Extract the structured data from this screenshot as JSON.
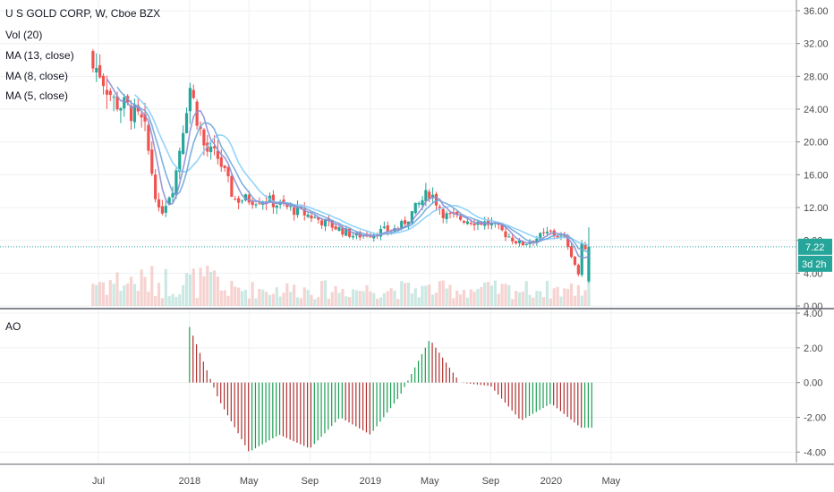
{
  "header": {
    "symbol_line": "U S GOLD CORP, W, Cboe BZX",
    "indicators": [
      "Vol (20)",
      "MA (13, close)",
      "MA (8, close)",
      "MA (5, close)"
    ]
  },
  "ao_panel": {
    "label": "AO"
  },
  "price_tags": {
    "last_price": "7.22",
    "countdown": "3d 2h"
  },
  "colors": {
    "up": "#26a69a",
    "down": "#ef5350",
    "ma13": "#87cefa",
    "ma8": "#6fa8dc",
    "ma5": "#8e8fd6",
    "last_line": "#26a69a",
    "ao_up": "#1a9e52",
    "ao_down": "#b03030"
  },
  "chart_data": [
    {
      "type": "candlestick",
      "title": "U S GOLD CORP, W, Cboe BZX",
      "x_ticks": [
        "Jul",
        "2018",
        "May",
        "Sep",
        "2019",
        "May",
        "Sep",
        "2020",
        "May"
      ],
      "y_ticks": [
        "36.00",
        "32.00",
        "28.00",
        "24.00",
        "20.00",
        "16.00",
        "12.00",
        "8.00",
        "4.00",
        "0.00"
      ],
      "ylim": [
        0,
        36
      ],
      "last_price": 7.22,
      "approx_close_path": [
        {
          "date": "2017-07",
          "close": 29
        },
        {
          "date": "2017-08",
          "close": 25
        },
        {
          "date": "2017-09",
          "close": 24
        },
        {
          "date": "2017-10",
          "close": 22
        },
        {
          "date": "2017-11",
          "close": 11
        },
        {
          "date": "2017-12",
          "close": 15
        },
        {
          "date": "2018-01",
          "close": 27
        },
        {
          "date": "2018-02",
          "close": 19
        },
        {
          "date": "2018-03",
          "close": 18
        },
        {
          "date": "2018-04",
          "close": 13
        },
        {
          "date": "2018-06",
          "close": 13
        },
        {
          "date": "2018-09",
          "close": 11
        },
        {
          "date": "2018-12",
          "close": 8.5
        },
        {
          "date": "2019-03",
          "close": 9.5
        },
        {
          "date": "2019-05",
          "close": 14
        },
        {
          "date": "2019-06",
          "close": 11
        },
        {
          "date": "2019-09",
          "close": 10
        },
        {
          "date": "2019-11",
          "close": 7.5
        },
        {
          "date": "2020-01",
          "close": 9
        },
        {
          "date": "2020-02",
          "close": 8
        },
        {
          "date": "2020-03",
          "close": 3
        },
        {
          "date": "2020-03",
          "close": 7.22
        }
      ],
      "series": [
        {
          "name": "MA (13, close)"
        },
        {
          "name": "MA (8, close)"
        },
        {
          "name": "MA (5, close)"
        },
        {
          "name": "Vol (20)"
        }
      ]
    },
    {
      "type": "bar",
      "title": "AO",
      "y_ticks": [
        "4.00",
        "2.00",
        "0.00",
        "-2.00",
        "-4.00"
      ],
      "ylim": [
        -4.6,
        4
      ],
      "approx_values": [
        {
          "date": "2018-01",
          "value": 3.2
        },
        {
          "date": "2018-03",
          "value": -1.0
        },
        {
          "date": "2018-05",
          "value": -4.0
        },
        {
          "date": "2018-07",
          "value": -3.0
        },
        {
          "date": "2018-09",
          "value": -3.8
        },
        {
          "date": "2018-11",
          "value": -2.0
        },
        {
          "date": "2019-01",
          "value": -3.0
        },
        {
          "date": "2019-03",
          "value": -0.8
        },
        {
          "date": "2019-05",
          "value": 2.5
        },
        {
          "date": "2019-07",
          "value": 0.0
        },
        {
          "date": "2019-09",
          "value": -0.2
        },
        {
          "date": "2019-11",
          "value": -2.2
        },
        {
          "date": "2020-01",
          "value": -1.2
        },
        {
          "date": "2020-03",
          "value": -2.6
        }
      ]
    }
  ]
}
